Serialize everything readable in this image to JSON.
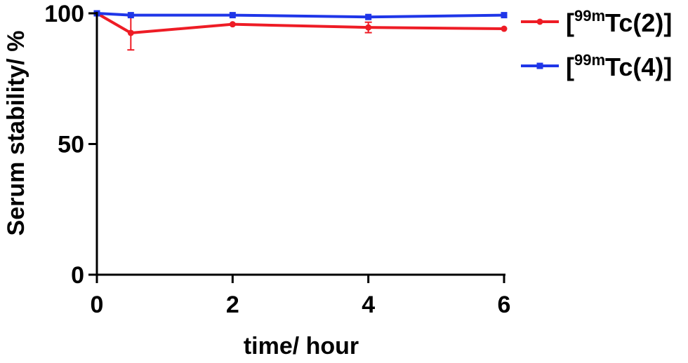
{
  "chart_data": {
    "type": "line",
    "xlabel": "time/ hour",
    "ylabel": "Serum stability/ %",
    "xlim": [
      0,
      6
    ],
    "ylim": [
      0,
      100
    ],
    "x_ticks": [
      "0",
      "2",
      "4",
      "6"
    ],
    "y_ticks": [
      "0",
      "50",
      "100"
    ],
    "grid": false,
    "legend_position": "right",
    "series": [
      {
        "name": "[99mTc(2)]",
        "name_parts": {
          "open": "[",
          "sup": "99m",
          "body": "Tc(2)]"
        },
        "color": "#ee1c25",
        "marker": "circle",
        "x": [
          0,
          0.5,
          2,
          4,
          6
        ],
        "y": [
          100,
          92.5,
          95.8,
          94.6,
          94.1
        ],
        "error": [
          0,
          6.5,
          0,
          2,
          0
        ]
      },
      {
        "name": "[99mTc(4)]",
        "name_parts": {
          "open": "[",
          "sup": "99m",
          "body": "Tc(4)]"
        },
        "color": "#1f36e8",
        "marker": "square",
        "x": [
          0,
          0.5,
          2,
          4,
          6
        ],
        "y": [
          100,
          99.3,
          99.3,
          98.6,
          99.3
        ],
        "error": [
          0,
          0,
          0,
          0,
          0
        ]
      }
    ]
  }
}
